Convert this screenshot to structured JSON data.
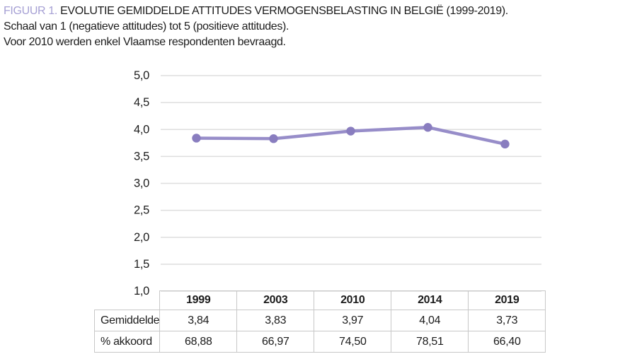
{
  "caption": {
    "figure_label": "FIGUUR 1.",
    "title": "EVOLUTIE GEMIDDELDE ATTITUDES VERMOGENSBELASTING IN BELGIË (1999-2019).",
    "subtitle1": "Schaal van 1 (negatieve attitudes) tot 5 (positieve attitudes).",
    "subtitle2": "Voor 2010 werden enkel Vlaamse respondenten bevraagd."
  },
  "colors": {
    "figure_label": "#a6a0d4",
    "line": "#978dc9",
    "marker": "#897dbf",
    "gridline": "#dedede",
    "table_border": "#c8c8c8",
    "text": "#1c1c1c"
  },
  "chart_data": {
    "type": "line",
    "title": "Evolutie gemiddelde attitudes vermogensbelasting in België (1999-2019)",
    "categories": [
      "1999",
      "2003",
      "2010",
      "2014",
      "2019"
    ],
    "series": [
      {
        "name": "Gemiddelde",
        "values": [
          3.84,
          3.83,
          3.97,
          4.04,
          3.73
        ]
      }
    ],
    "xlabel": "",
    "ylabel": "",
    "ylim": [
      1.0,
      5.0
    ],
    "ytick_step": 0.5,
    "ytick_labels": [
      "1,0",
      "1,5",
      "2,0",
      "2,5",
      "3,0",
      "3,5",
      "4,0",
      "4,5",
      "5,0"
    ],
    "grid": true,
    "legend": "none"
  },
  "table": {
    "col_headers": [
      "1999",
      "2003",
      "2010",
      "2014",
      "2019"
    ],
    "rows": [
      {
        "label": "Gemiddelde",
        "values": [
          "3,84",
          "3,83",
          "3,97",
          "4,04",
          "3,73"
        ]
      },
      {
        "label": "% akkoord",
        "values": [
          "68,88",
          "66,97",
          "74,50",
          "78,51",
          "66,40"
        ]
      }
    ]
  }
}
